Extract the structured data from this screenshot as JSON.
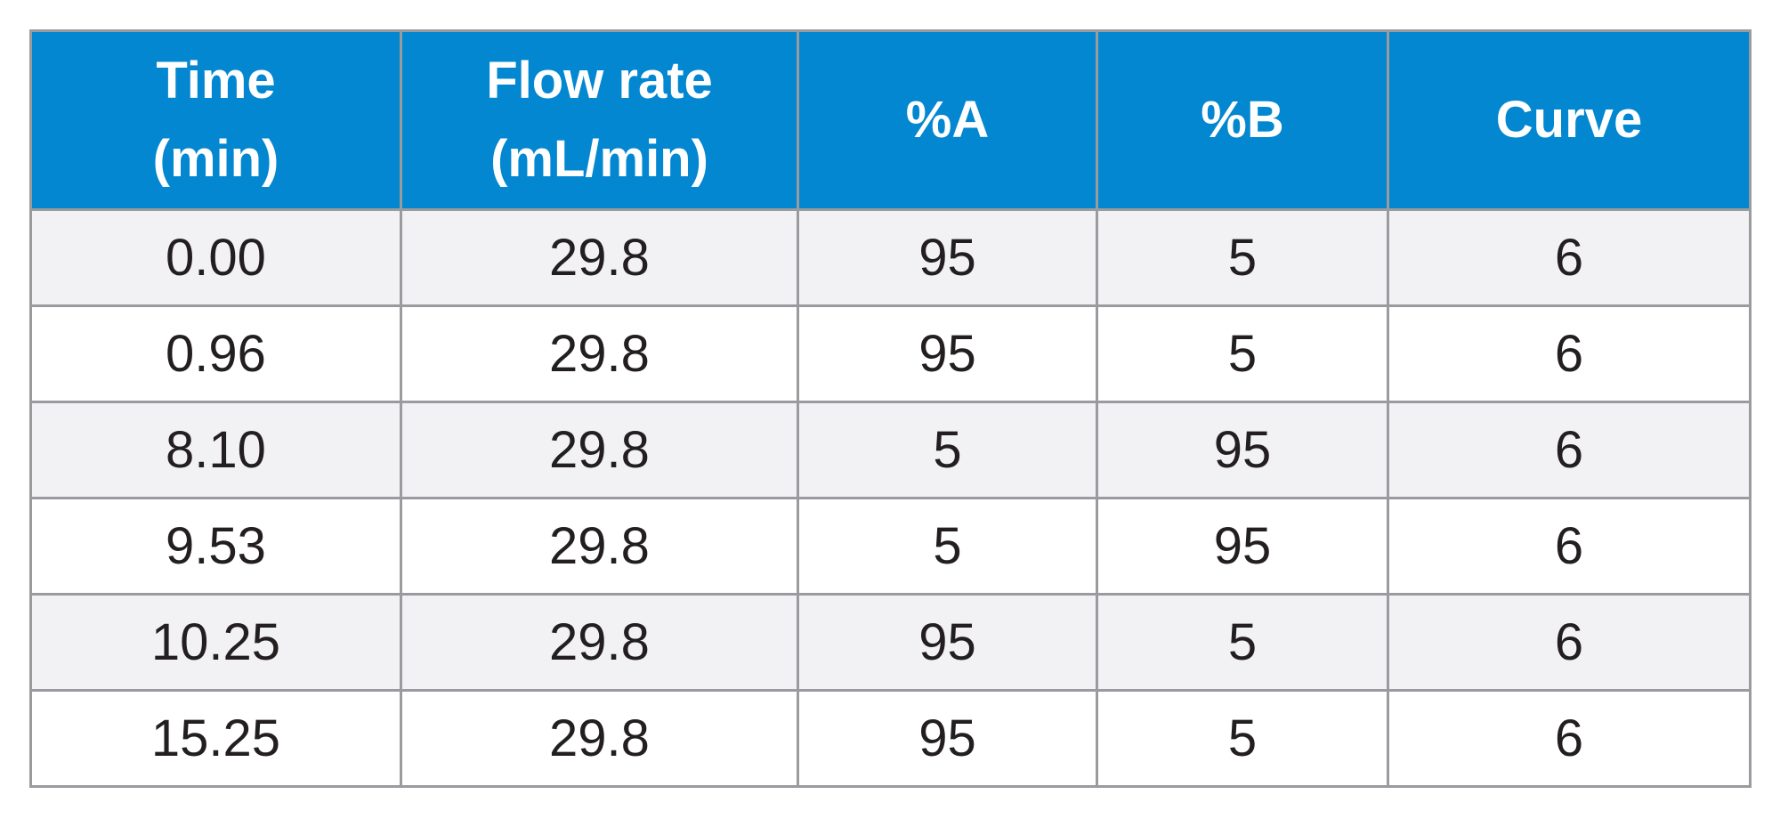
{
  "table": {
    "headers": [
      [
        "Time",
        "(min)"
      ],
      [
        "Flow rate",
        "(mL/min)"
      ],
      [
        "%A"
      ],
      [
        "%B"
      ],
      [
        "Curve"
      ]
    ],
    "rows": [
      [
        "0.00",
        "29.8",
        "95",
        "5",
        "6"
      ],
      [
        "0.96",
        "29.8",
        "95",
        "5",
        "6"
      ],
      [
        "8.10",
        "29.8",
        "5",
        "95",
        "6"
      ],
      [
        "9.53",
        "29.8",
        "5",
        "95",
        "6"
      ],
      [
        "10.25",
        "29.8",
        "95",
        "5",
        "6"
      ],
      [
        "15.25",
        "29.8",
        "95",
        "5",
        "6"
      ]
    ]
  },
  "colors": {
    "header_bg": "#0287d0",
    "header_text": "#ffffff",
    "row_alt_bg": "#f2f2f4",
    "border": "#9a9b9e",
    "cell_text": "#231f20"
  }
}
